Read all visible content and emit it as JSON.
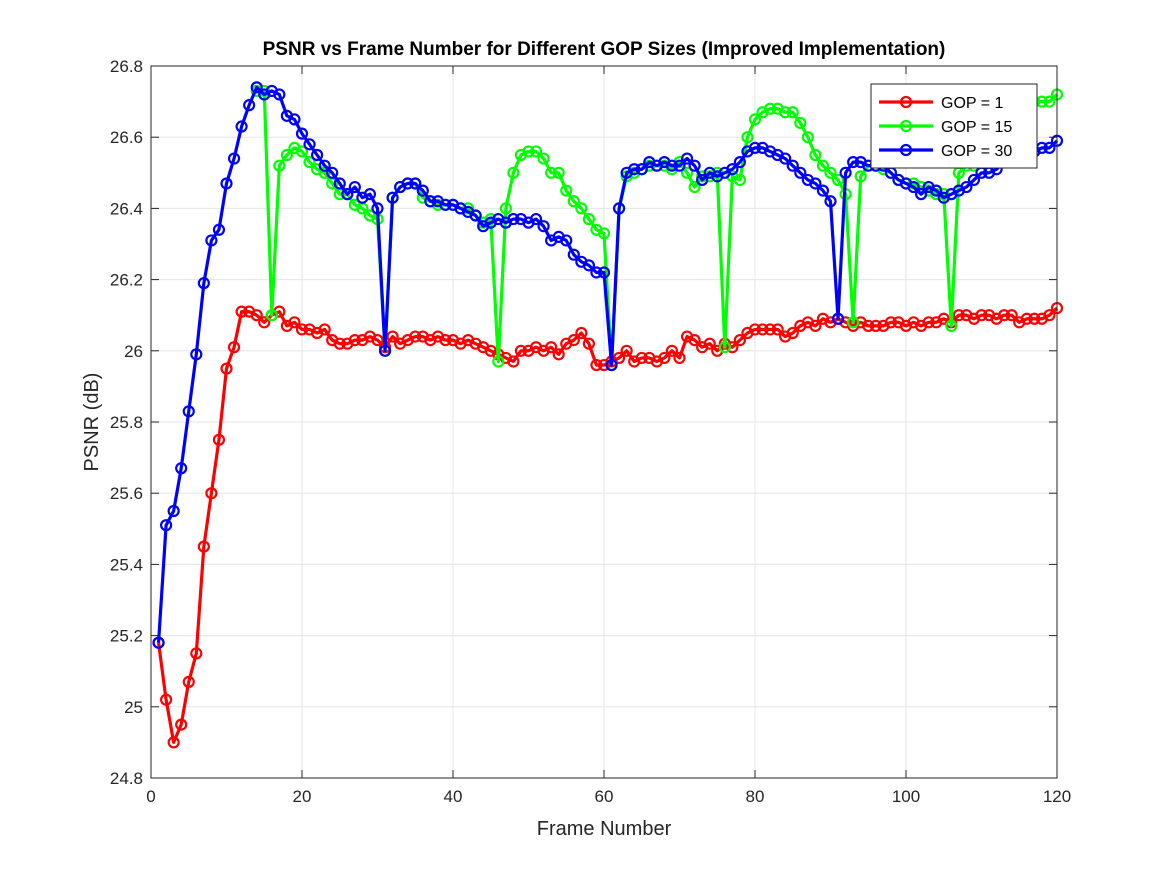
{
  "chart_data": {
    "type": "line",
    "title": "PSNR vs Frame Number for Different GOP Sizes (Improved Implementation)",
    "xlabel": "Frame Number",
    "ylabel": "PSNR (dB)",
    "xlim": [
      0,
      120
    ],
    "ylim": [
      24.8,
      26.8
    ],
    "xticks": [
      0,
      20,
      40,
      60,
      80,
      100,
      120
    ],
    "yticks": [
      24.8,
      25,
      25.2,
      25.4,
      25.6,
      25.8,
      26,
      26.2,
      26.4,
      26.6,
      26.8
    ],
    "grid": true,
    "legend_position": "top-right",
    "series": [
      {
        "name": "GOP = 1",
        "color": "#ff0000",
        "x": [
          1,
          2,
          3,
          4,
          5,
          6,
          7,
          8,
          9,
          10,
          11,
          12,
          13,
          14,
          15,
          16,
          17,
          18,
          19,
          20,
          21,
          22,
          23,
          24,
          25,
          26,
          27,
          28,
          29,
          30,
          31,
          32,
          33,
          34,
          35,
          36,
          37,
          38,
          39,
          40,
          41,
          42,
          43,
          44,
          45,
          46,
          47,
          48,
          49,
          50,
          51,
          52,
          53,
          54,
          55,
          56,
          57,
          58,
          59,
          60,
          61,
          62,
          63,
          64,
          65,
          66,
          67,
          68,
          69,
          70,
          71,
          72,
          73,
          74,
          75,
          76,
          77,
          78,
          79,
          80,
          81,
          82,
          83,
          84,
          85,
          86,
          87,
          88,
          89,
          90,
          91,
          92,
          93,
          94,
          95,
          96,
          97,
          98,
          99,
          100,
          101,
          102,
          103,
          104,
          105,
          106,
          107,
          108,
          109,
          110,
          111,
          112,
          113,
          114,
          115,
          116,
          117,
          118,
          119,
          120
        ],
        "y": [
          25.18,
          25.02,
          24.9,
          24.95,
          25.07,
          25.15,
          25.45,
          25.6,
          25.75,
          25.95,
          26.01,
          26.11,
          26.11,
          26.1,
          26.08,
          26.1,
          26.11,
          26.07,
          26.08,
          26.06,
          26.06,
          26.05,
          26.06,
          26.03,
          26.02,
          26.02,
          26.03,
          26.03,
          26.04,
          26.03,
          26.01,
          26.04,
          26.02,
          26.03,
          26.04,
          26.04,
          26.03,
          26.04,
          26.03,
          26.03,
          26.02,
          26.03,
          26.02,
          26.01,
          26.0,
          25.99,
          25.98,
          25.97,
          26.0,
          26.0,
          26.01,
          26.0,
          26.01,
          25.99,
          26.02,
          26.03,
          26.05,
          26.02,
          25.96,
          25.96,
          25.97,
          25.98,
          26.0,
          25.97,
          25.98,
          25.98,
          25.97,
          25.98,
          26.0,
          25.98,
          26.04,
          26.03,
          26.01,
          26.02,
          26.0,
          26.02,
          26.01,
          26.03,
          26.05,
          26.06,
          26.06,
          26.06,
          26.06,
          26.04,
          26.05,
          26.07,
          26.08,
          26.07,
          26.09,
          26.08,
          26.09,
          26.08,
          26.07,
          26.08,
          26.07,
          26.07,
          26.07,
          26.08,
          26.08,
          26.07,
          26.08,
          26.07,
          26.08,
          26.08,
          26.09,
          26.08,
          26.1,
          26.1,
          26.09,
          26.1,
          26.1,
          26.09,
          26.1,
          26.1,
          26.08,
          26.09,
          26.09,
          26.09,
          26.1,
          26.12
        ]
      },
      {
        "name": "GOP = 15",
        "color": "#00ff00",
        "x": [
          14,
          15,
          16,
          17,
          18,
          19,
          20,
          21,
          22,
          23,
          24,
          25,
          26,
          27,
          28,
          29,
          30,
          31,
          32,
          33,
          34,
          35,
          36,
          37,
          38,
          39,
          40,
          41,
          42,
          43,
          44,
          45,
          46,
          47,
          48,
          49,
          50,
          51,
          52,
          53,
          54,
          55,
          56,
          57,
          58,
          59,
          60,
          61,
          62,
          63,
          64,
          65,
          66,
          67,
          68,
          69,
          70,
          71,
          72,
          73,
          74,
          75,
          76,
          77,
          78,
          79,
          80,
          81,
          82,
          83,
          84,
          85,
          86,
          87,
          88,
          89,
          90,
          91,
          92,
          93,
          94,
          95,
          96,
          97,
          98,
          99,
          100,
          101,
          102,
          103,
          104,
          105,
          106,
          107,
          108,
          109,
          110,
          111,
          112,
          113,
          114,
          115,
          116,
          117,
          118,
          119,
          120
        ],
        "y": [
          26.73,
          26.73,
          26.1,
          26.52,
          26.55,
          26.57,
          26.56,
          26.53,
          26.51,
          26.5,
          26.47,
          26.44,
          26.44,
          26.41,
          26.4,
          26.38,
          26.37,
          26.0,
          26.43,
          26.46,
          26.47,
          26.47,
          26.43,
          26.42,
          26.41,
          26.41,
          26.41,
          26.4,
          26.4,
          26.38,
          26.36,
          26.37,
          25.97,
          26.4,
          26.5,
          26.55,
          26.56,
          26.56,
          26.54,
          26.5,
          26.5,
          26.45,
          26.42,
          26.4,
          26.37,
          26.34,
          26.33,
          25.96,
          26.4,
          26.49,
          26.5,
          26.51,
          26.52,
          26.52,
          26.52,
          26.51,
          26.53,
          26.5,
          26.46,
          26.49,
          26.49,
          26.5,
          26.01,
          26.49,
          26.48,
          26.6,
          26.65,
          26.67,
          26.68,
          26.68,
          26.67,
          26.67,
          26.64,
          26.6,
          26.55,
          26.52,
          26.5,
          26.48,
          26.44,
          26.08,
          26.49,
          26.52,
          26.52,
          26.51,
          26.5,
          26.48,
          26.47,
          26.47,
          26.46,
          26.45,
          26.44,
          26.44,
          26.07,
          26.5,
          26.52,
          26.52,
          26.54,
          26.56,
          26.6,
          26.63,
          26.65,
          26.68,
          26.69,
          26.7,
          26.7,
          26.7,
          26.72
        ]
      },
      {
        "name": "GOP = 30",
        "color": "#0000ff",
        "x": [
          1,
          2,
          3,
          4,
          5,
          6,
          7,
          8,
          9,
          10,
          11,
          12,
          13,
          14,
          15,
          16,
          17,
          18,
          19,
          20,
          21,
          22,
          23,
          24,
          25,
          26,
          27,
          28,
          29,
          30,
          31,
          32,
          33,
          34,
          35,
          36,
          37,
          38,
          39,
          40,
          41,
          42,
          43,
          44,
          45,
          46,
          47,
          48,
          49,
          50,
          51,
          52,
          53,
          54,
          55,
          56,
          57,
          58,
          59,
          60,
          61,
          62,
          63,
          64,
          65,
          66,
          67,
          68,
          69,
          70,
          71,
          72,
          73,
          74,
          75,
          76,
          77,
          78,
          79,
          80,
          81,
          82,
          83,
          84,
          85,
          86,
          87,
          88,
          89,
          90,
          91,
          92,
          93,
          94,
          95,
          96,
          97,
          98,
          99,
          100,
          101,
          102,
          103,
          104,
          105,
          106,
          107,
          108,
          109,
          110,
          111,
          112,
          113,
          114,
          115,
          116,
          117,
          118,
          119,
          120
        ],
        "y": [
          25.18,
          25.51,
          25.55,
          25.67,
          25.83,
          25.99,
          26.19,
          26.31,
          26.34,
          26.47,
          26.54,
          26.63,
          26.69,
          26.74,
          26.72,
          26.73,
          26.72,
          26.66,
          26.65,
          26.61,
          26.58,
          26.55,
          26.52,
          26.5,
          26.47,
          26.44,
          26.46,
          26.43,
          26.44,
          26.4,
          26.0,
          26.43,
          26.46,
          26.47,
          26.47,
          26.45,
          26.42,
          26.42,
          26.41,
          26.41,
          26.4,
          26.39,
          26.38,
          26.35,
          26.36,
          26.37,
          26.36,
          26.37,
          26.37,
          26.36,
          26.37,
          26.35,
          26.31,
          26.32,
          26.31,
          26.27,
          26.25,
          26.24,
          26.22,
          26.22,
          25.96,
          26.4,
          26.5,
          26.51,
          26.51,
          26.53,
          26.52,
          26.53,
          26.52,
          26.52,
          26.54,
          26.52,
          26.48,
          26.5,
          26.49,
          26.5,
          26.51,
          26.53,
          26.56,
          26.57,
          26.57,
          26.56,
          26.55,
          26.54,
          26.52,
          26.5,
          26.48,
          26.47,
          26.45,
          26.42,
          26.09,
          26.5,
          26.53,
          26.53,
          26.52,
          26.52,
          26.52,
          26.5,
          26.48,
          26.47,
          26.46,
          26.44,
          26.46,
          26.45,
          26.43,
          26.44,
          26.45,
          26.46,
          26.48,
          26.5,
          26.5,
          26.51,
          26.53,
          26.54,
          26.55,
          26.56,
          26.56,
          26.57,
          26.57,
          26.59
        ]
      }
    ]
  }
}
